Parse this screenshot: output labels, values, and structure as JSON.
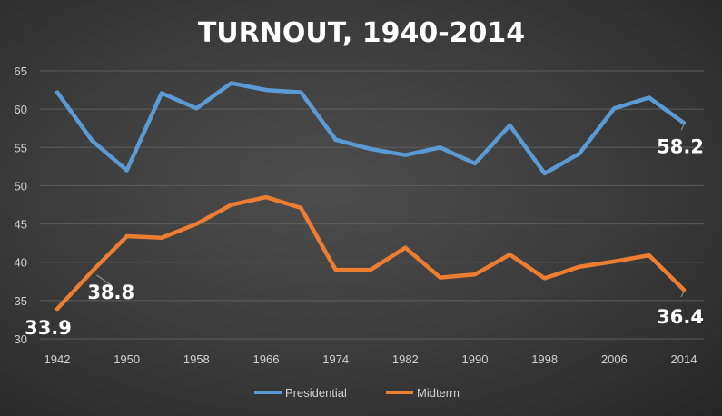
{
  "chart_data": {
    "type": "line",
    "title": "TURNOUT, 1940-2014",
    "xlabel": "",
    "ylabel": "",
    "ylim": [
      30,
      65
    ],
    "yticks": [
      "30",
      "35",
      "40",
      "45",
      "50",
      "55",
      "60",
      "65"
    ],
    "x": [
      1942,
      1946,
      1950,
      1954,
      1958,
      1962,
      1966,
      1970,
      1974,
      1978,
      1982,
      1986,
      1990,
      1994,
      1998,
      2002,
      2006,
      2010,
      2014
    ],
    "xtick_labels": [
      "1942",
      "1950",
      "1958",
      "1966",
      "1974",
      "1982",
      "1990",
      "1998",
      "2006",
      "2014"
    ],
    "grid": true,
    "legend_position": "bottom",
    "series": [
      {
        "name": "Presidential",
        "color": "#5b9bd5",
        "values": [
          62.2,
          55.9,
          52.0,
          62.1,
          60.1,
          63.4,
          62.5,
          62.2,
          56.0,
          54.8,
          54.0,
          55.0,
          52.9,
          57.9,
          51.6,
          54.2,
          60.1,
          61.5,
          58.2
        ]
      },
      {
        "name": "Midterm",
        "color": "#ed7d31",
        "values": [
          33.9,
          38.8,
          43.4,
          43.2,
          45.0,
          47.5,
          48.5,
          47.1,
          39.0,
          39.0,
          41.9,
          38.0,
          38.4,
          41.0,
          37.9,
          39.4,
          40.1,
          40.9,
          36.4
        ]
      }
    ],
    "data_labels": [
      {
        "series": 0,
        "index": 18,
        "text": "58.2"
      },
      {
        "series": 1,
        "index": 0,
        "text": "33.9"
      },
      {
        "series": 1,
        "index": 1,
        "text": "38.8"
      },
      {
        "series": 1,
        "index": 18,
        "text": "36.4"
      }
    ]
  }
}
